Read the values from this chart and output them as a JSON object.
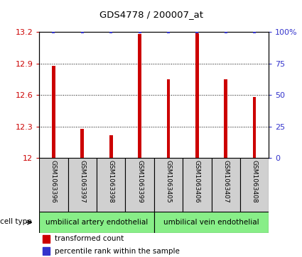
{
  "title": "GDS4778 / 200007_at",
  "samples": [
    "GSM1063396",
    "GSM1063397",
    "GSM1063398",
    "GSM1063399",
    "GSM1063405",
    "GSM1063406",
    "GSM1063407",
    "GSM1063408"
  ],
  "bar_values": [
    12.88,
    12.28,
    12.22,
    13.18,
    12.75,
    13.19,
    12.75,
    12.58
  ],
  "percentile_values": [
    100,
    100,
    100,
    100,
    100,
    100,
    100,
    100
  ],
  "bar_color": "#cc0000",
  "dot_color": "#3333cc",
  "ylim_left": [
    12.0,
    13.2
  ],
  "ylim_right": [
    0,
    100
  ],
  "yticks_left": [
    12.0,
    12.3,
    12.6,
    12.9,
    13.2
  ],
  "ytick_labels_left": [
    "12",
    "12.3",
    "12.6",
    "12.9",
    "13.2"
  ],
  "yticks_right": [
    0,
    25,
    50,
    75,
    100
  ],
  "ytick_labels_right": [
    "0",
    "25",
    "50",
    "75",
    "100%"
  ],
  "cell_type_groups": [
    {
      "label": "umbilical artery endothelial",
      "start": 0,
      "end": 3,
      "color": "#88ee88"
    },
    {
      "label": "umbilical vein endothelial",
      "start": 4,
      "end": 7,
      "color": "#88ee88"
    }
  ],
  "cell_type_label": "cell type",
  "legend_red_label": "transformed count",
  "legend_blue_label": "percentile rank within the sample",
  "background_color": "#ffffff",
  "sample_box_color": "#d0d0d0",
  "bar_width": 0.12
}
